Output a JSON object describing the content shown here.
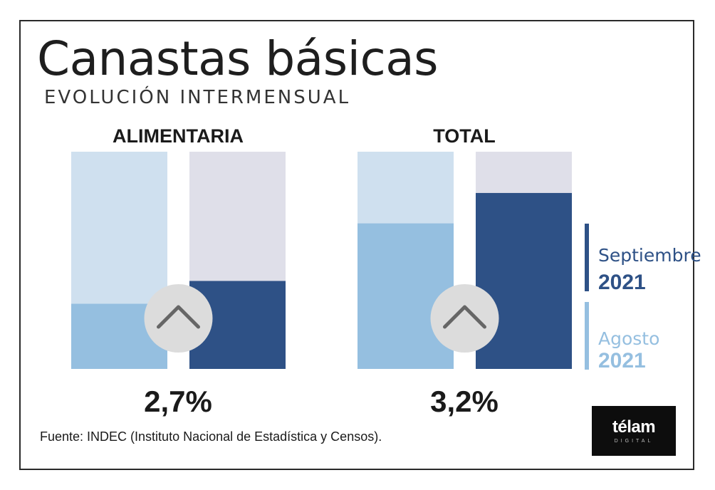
{
  "title": "Canastas básicas",
  "subtitle": "EVOLUCIÓN INTERMENSUAL",
  "source": "Fuente: INDEC (Instituto Nacional de Estadística y Censos).",
  "logo": {
    "name": "télam",
    "sub": "DIGITAL"
  },
  "legend": {
    "sept_month": "Septiembre",
    "sept_year": "2021",
    "ago_month": "Agosto",
    "ago_year": "2021"
  },
  "colors": {
    "september": "#2e5186",
    "august": "#95bfe0",
    "august_track": "#cfe0ef",
    "september_track": "#dfdfe9",
    "arrow_circle": "#dcdcdc",
    "arrow": "#666666"
  },
  "chart_data": [
    {
      "type": "bar",
      "title": "ALIMENTARIA",
      "headline": "2,7%",
      "series": [
        {
          "name": "Agosto 2021",
          "value": 0.3
        },
        {
          "name": "Septiembre 2021",
          "value": 0.405
        }
      ],
      "ylim": [
        0,
        1
      ],
      "icon": "up-chevron-icon"
    },
    {
      "type": "bar",
      "title": "TOTAL",
      "headline": "3,2%",
      "series": [
        {
          "name": "Agosto 2021",
          "value": 0.67
        },
        {
          "name": "Septiembre 2021",
          "value": 0.81
        }
      ],
      "ylim": [
        0,
        1
      ],
      "icon": "up-chevron-icon"
    }
  ]
}
